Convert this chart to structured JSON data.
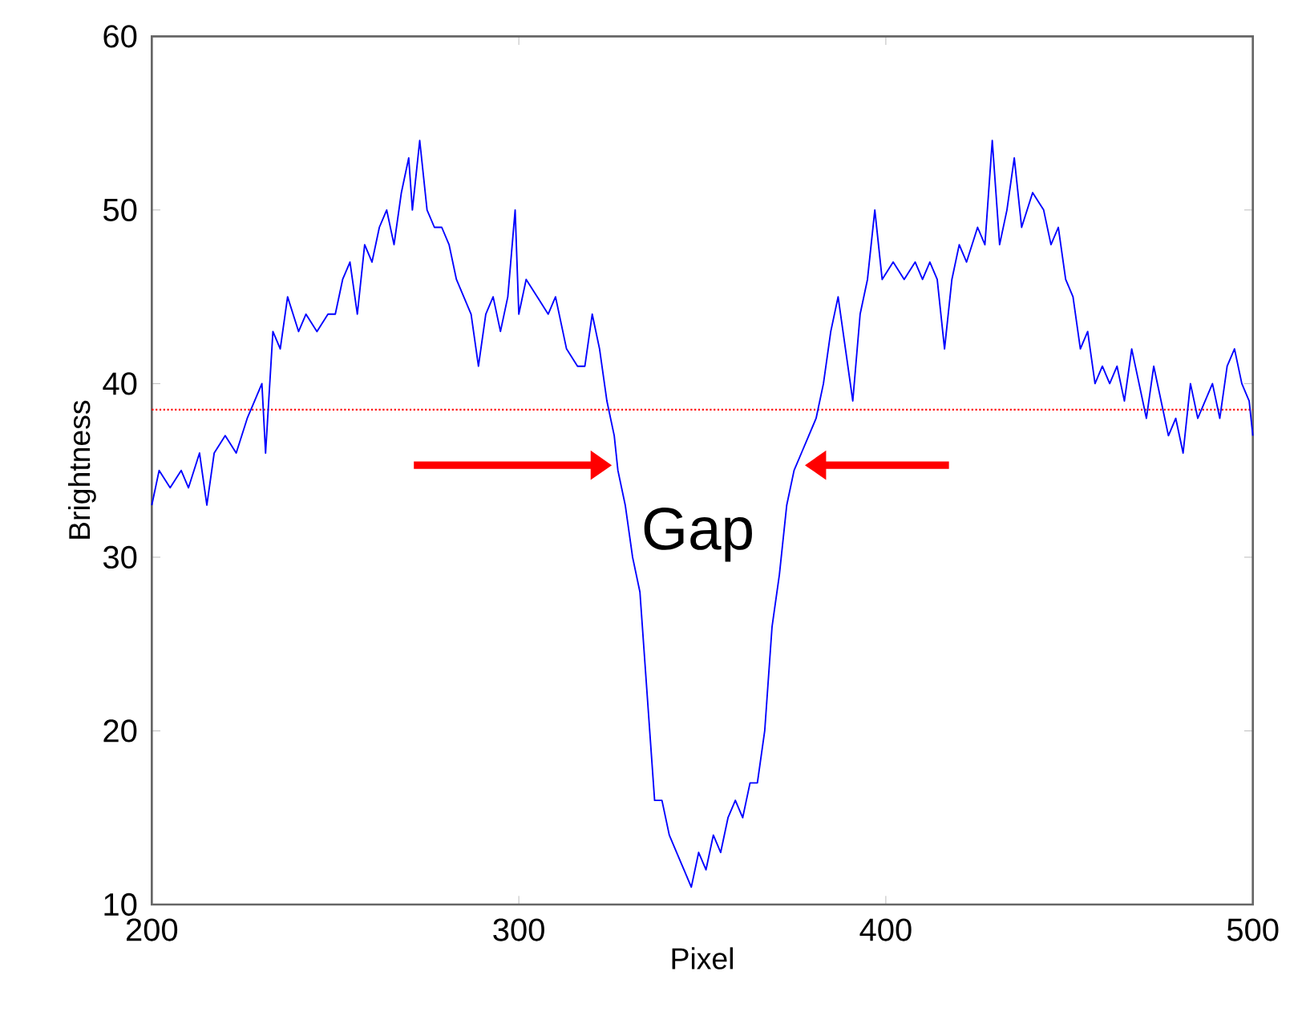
{
  "chart_data": {
    "type": "line",
    "xlabel": "Pixel",
    "ylabel": "Brightness",
    "xlim": [
      200,
      500
    ],
    "ylim": [
      10,
      60
    ],
    "xticks": [
      200,
      300,
      400,
      500
    ],
    "yticks": [
      10,
      20,
      30,
      40,
      50,
      60
    ],
    "series": [
      {
        "color": "#0000ff",
        "x": [
          200,
          202,
          205,
          208,
          210,
          213,
          215,
          217,
          220,
          223,
          226,
          228,
          230,
          231,
          233,
          235,
          237,
          240,
          242,
          245,
          248,
          250,
          252,
          254,
          256,
          258,
          260,
          262,
          264,
          266,
          268,
          270,
          271,
          273,
          275,
          277,
          279,
          281,
          283,
          285,
          287,
          289,
          291,
          293,
          295,
          297,
          299,
          300,
          302,
          305,
          308,
          310,
          313,
          316,
          318,
          320,
          322,
          324,
          326,
          327,
          329,
          331,
          333,
          335,
          337,
          339,
          341,
          343,
          345,
          347,
          349,
          351,
          353,
          355,
          357,
          359,
          361,
          363,
          365,
          367,
          369,
          371,
          373,
          375,
          377,
          379,
          381,
          383,
          385,
          387,
          389,
          391,
          393,
          395,
          397,
          399,
          402,
          405,
          408,
          410,
          412,
          414,
          416,
          418,
          420,
          422,
          425,
          427,
          429,
          431,
          433,
          435,
          437,
          440,
          443,
          445,
          447,
          449,
          451,
          453,
          455,
          457,
          459,
          461,
          463,
          465,
          467,
          469,
          471,
          473,
          475,
          477,
          479,
          481,
          483,
          485,
          487,
          489,
          491,
          493,
          495,
          497,
          499,
          500
        ],
        "values": [
          33,
          35,
          34,
          35,
          34,
          36,
          33,
          36,
          37,
          36,
          38,
          39,
          40,
          36,
          43,
          42,
          45,
          43,
          44,
          43,
          44,
          44,
          46,
          47,
          44,
          48,
          47,
          49,
          50,
          48,
          51,
          53,
          50,
          54,
          50,
          49,
          49,
          48,
          46,
          45,
          44,
          41,
          44,
          45,
          43,
          45,
          50,
          44,
          46,
          45,
          44,
          45,
          42,
          41,
          41,
          44,
          42,
          39,
          37,
          35,
          33,
          30,
          28,
          22,
          16,
          16,
          14,
          13,
          12,
          11,
          13,
          12,
          14,
          13,
          15,
          16,
          15,
          17,
          17,
          20,
          26,
          29,
          33,
          35,
          36,
          37,
          38,
          40,
          43,
          45,
          42,
          39,
          44,
          46,
          50,
          46,
          47,
          46,
          47,
          46,
          47,
          46,
          42,
          46,
          48,
          47,
          49,
          48,
          54,
          48,
          50,
          53,
          49,
          51,
          50,
          48,
          49,
          46,
          45,
          42,
          43,
          40,
          41,
          40,
          41,
          39,
          42,
          40,
          38,
          41,
          39,
          37,
          38,
          36,
          40,
          38,
          39,
          40,
          38,
          41,
          42,
          40,
          39,
          37
        ]
      }
    ],
    "ref_lines": [
      {
        "axis": "y",
        "value": 38.5,
        "color": "#ff0000",
        "line_style": "dotted"
      }
    ],
    "annotations": [
      "Gap"
    ],
    "grid": false,
    "marker": "none",
    "line_style": "solid"
  }
}
